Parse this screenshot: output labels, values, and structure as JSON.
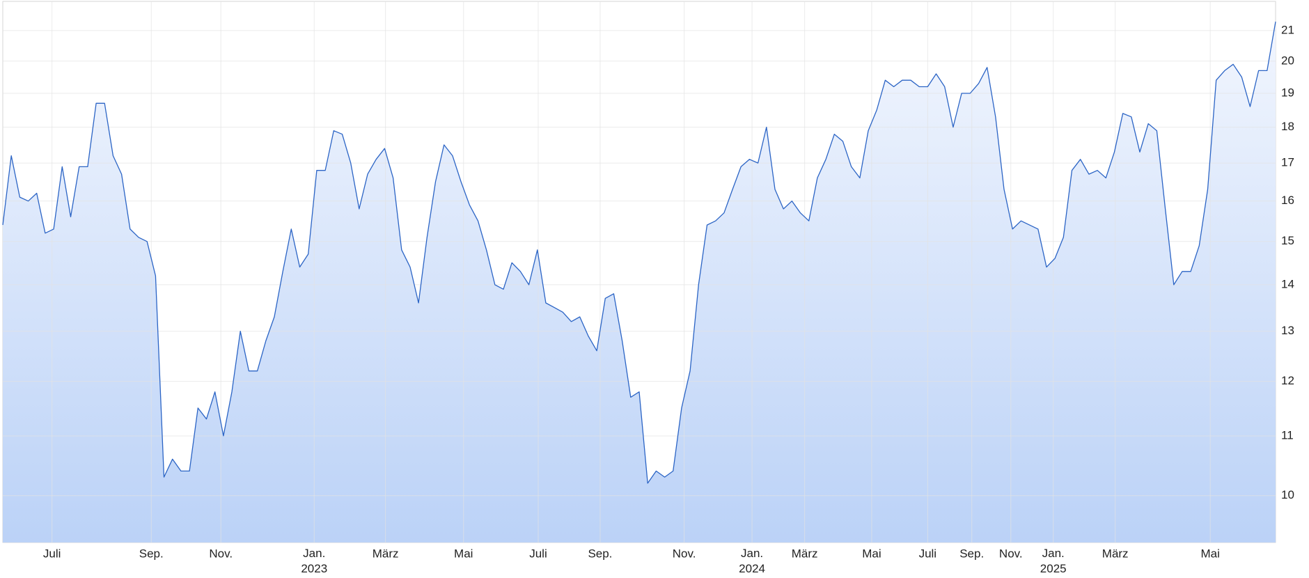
{
  "chart_data": {
    "type": "line",
    "log_scale": true,
    "grid": true,
    "color": "#2b64c5",
    "values": [
      15.4,
      17.2,
      16.1,
      16.0,
      16.2,
      15.2,
      15.3,
      16.9,
      15.6,
      16.9,
      16.9,
      18.7,
      18.7,
      17.2,
      16.7,
      15.3,
      15.1,
      15.0,
      14.2,
      10.3,
      10.6,
      10.4,
      10.4,
      11.5,
      11.3,
      11.8,
      11.0,
      11.8,
      13.0,
      12.2,
      12.2,
      12.8,
      13.3,
      14.3,
      15.3,
      14.4,
      14.7,
      16.8,
      16.8,
      17.9,
      17.8,
      17.0,
      15.8,
      16.7,
      17.1,
      17.4,
      16.6,
      14.8,
      14.4,
      13.6,
      15.1,
      16.5,
      17.5,
      17.2,
      16.5,
      15.9,
      15.5,
      14.8,
      14.0,
      13.9,
      14.5,
      14.3,
      14.0,
      14.8,
      13.6,
      13.5,
      13.4,
      13.2,
      13.3,
      12.9,
      12.6,
      13.7,
      13.8,
      12.8,
      11.7,
      11.8,
      10.2,
      10.4,
      10.3,
      10.4,
      11.5,
      12.2,
      14.0,
      15.4,
      15.5,
      15.7,
      16.3,
      16.9,
      17.1,
      17.0,
      18.0,
      16.3,
      15.8,
      16.0,
      15.7,
      15.5,
      16.6,
      17.1,
      17.8,
      17.6,
      16.9,
      16.6,
      17.9,
      18.5,
      19.4,
      19.2,
      19.4,
      19.4,
      19.2,
      19.2,
      19.6,
      19.2,
      18.0,
      19.0,
      19.0,
      19.3,
      19.8,
      18.3,
      16.3,
      15.3,
      15.5,
      15.4,
      15.3,
      14.4,
      14.6,
      15.1,
      16.8,
      17.1,
      16.7,
      16.8,
      16.6,
      17.3,
      18.4,
      18.3,
      17.3,
      18.1,
      17.9,
      15.8,
      14.0,
      14.3,
      14.3,
      14.9,
      16.3,
      19.4,
      19.7,
      19.9,
      19.5,
      18.6,
      19.7,
      19.7,
      21.3
    ],
    "xlim": [
      0,
      150
    ],
    "xticks": [
      {
        "value": 5.8,
        "label": "Juli"
      },
      {
        "value": 17.5,
        "label": "Sep."
      },
      {
        "value": 25.7,
        "label": "Nov."
      },
      {
        "value": 36.7,
        "label": "Jan. 2023"
      },
      {
        "value": 45.1,
        "label": "März"
      },
      {
        "value": 54.3,
        "label": "Mai"
      },
      {
        "value": 63.1,
        "label": "Juli"
      },
      {
        "value": 70.4,
        "label": "Sep."
      },
      {
        "value": 80.3,
        "label": "Nov."
      },
      {
        "value": 88.3,
        "label": "Jan. 2024"
      },
      {
        "value": 94.5,
        "label": "März"
      },
      {
        "value": 102.4,
        "label": "Mai"
      },
      {
        "value": 109,
        "label": "Juli"
      },
      {
        "value": 114.2,
        "label": "Sep."
      },
      {
        "value": 118.8,
        "label": "Nov."
      },
      {
        "value": 123.8,
        "label": "Jan. 2025"
      },
      {
        "value": 131.1,
        "label": "März"
      },
      {
        "value": 142.3,
        "label": "Mai"
      }
    ],
    "ylim": [
      9.28,
      22
    ],
    "yticks": [
      10,
      11,
      12,
      13,
      14,
      15,
      16,
      17,
      18,
      19,
      20,
      21
    ]
  }
}
